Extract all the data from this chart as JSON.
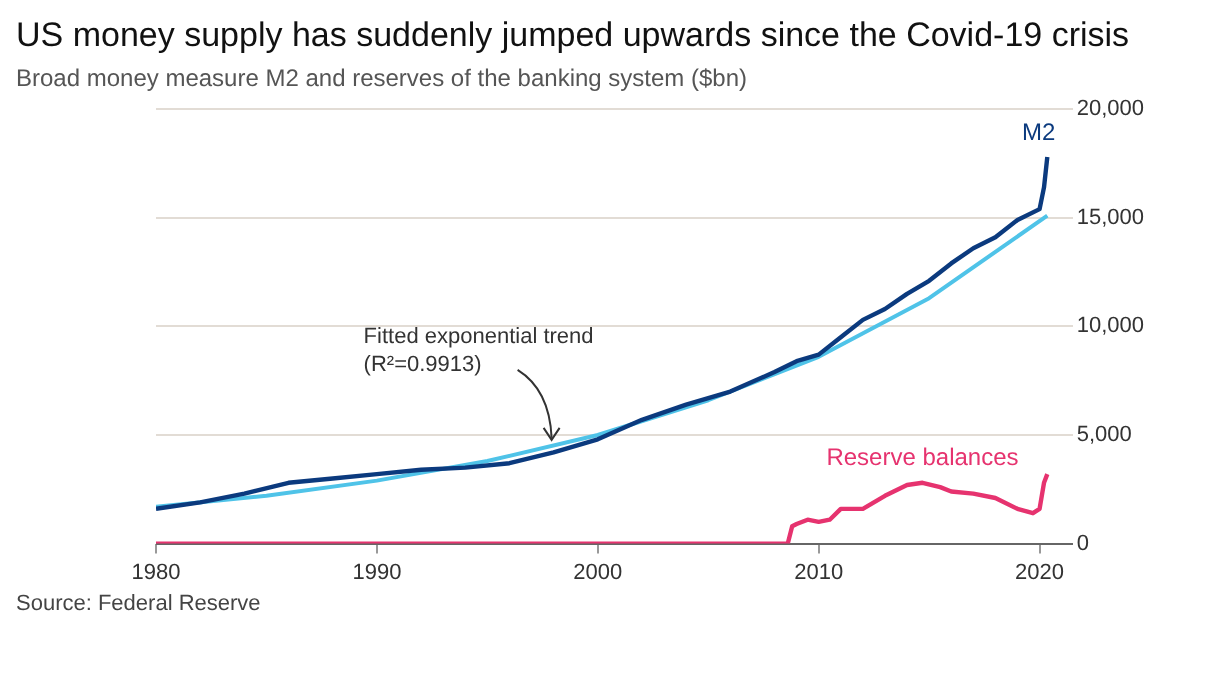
{
  "chart_data": {
    "type": "line",
    "title": "US money supply has suddenly jumped upwards since the Covid-19 crisis",
    "subtitle": "Broad money measure M2 and reserves of the banking system ($bn)",
    "series": [
      {
        "name": "M2",
        "color": "#0b3a7e",
        "x": [
          1980,
          1982,
          1984,
          1986,
          1988,
          1990,
          1992,
          1994,
          1996,
          1998,
          2000,
          2002,
          2004,
          2006,
          2008,
          2009,
          2010,
          2011,
          2012,
          2013,
          2014,
          2015,
          2016,
          2017,
          2018,
          2019,
          2020,
          2020.2,
          2020.35
        ],
        "values": [
          1600,
          1900,
          2300,
          2800,
          3000,
          3200,
          3400,
          3500,
          3700,
          4200,
          4800,
          5700,
          6400,
          7000,
          7900,
          8400,
          8700,
          9500,
          10300,
          10800,
          11500,
          12100,
          12900,
          13600,
          14100,
          14900,
          15400,
          16400,
          17800
        ]
      },
      {
        "color": "#4fc3e8",
        "x": [
          1980,
          1985,
          1990,
          1995,
          2000,
          2005,
          2010,
          2015,
          2020.35
        ],
        "values": [
          1700,
          2200,
          2900,
          3800,
          5000,
          6600,
          8600,
          11300,
          15100
        ]
      },
      {
        "name": "Reserve balances",
        "color": "#e6336f",
        "x": [
          1980,
          2008.6,
          2008.8,
          2009,
          2009.5,
          2010,
          2010.5,
          2011,
          2011.5,
          2012,
          2013,
          2014,
          2014.7,
          2015.5,
          2016,
          2017,
          2018,
          2019,
          2019.7,
          2020,
          2020.2,
          2020.35
        ],
        "values": [
          0,
          0,
          800,
          900,
          1100,
          1000,
          1100,
          1600,
          1600,
          1600,
          2200,
          2700,
          2800,
          2600,
          2400,
          2300,
          2100,
          1600,
          1400,
          1600,
          2800,
          3200
        ]
      }
    ],
    "xlim": [
      1980,
      2021.5
    ],
    "xticks": [
      1980,
      1990,
      2000,
      2010,
      2020
    ],
    "ylim": [
      0,
      20000
    ],
    "yticks": [
      0,
      {
        "value": 5000,
        "label": "5,000"
      },
      {
        "value": 10000,
        "label": "10,000"
      },
      {
        "value": 15000,
        "label": "15,000"
      },
      {
        "value": 20000,
        "label": "20,000"
      }
    ],
    "grid": "y",
    "legend": false,
    "annotations": [
      {
        "text": "Fitted exponential trend\n(R²=0.9913)",
        "x": 1998,
        "y": 4500
      },
      "Source: Federal Reserve"
    ]
  }
}
